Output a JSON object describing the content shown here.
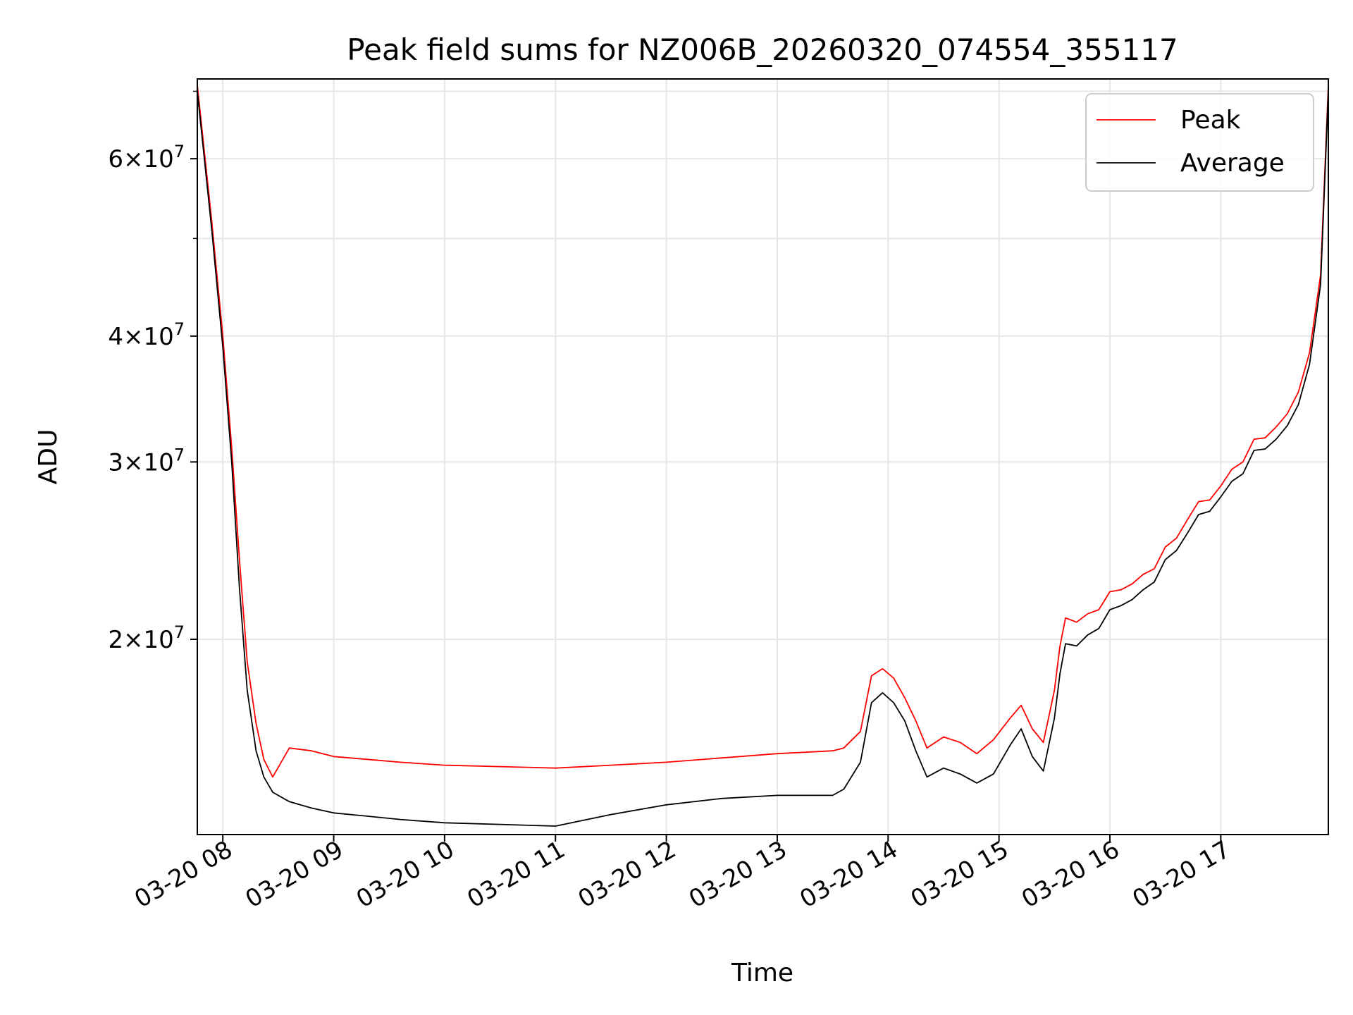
{
  "chart_data": {
    "type": "line",
    "title": "Peak field sums for NZ006B_20260320_074554_355117",
    "xlabel": "Time",
    "ylabel": "ADU",
    "yscale": "log",
    "ylim": [
      12800000,
      72000000
    ],
    "xlim": [
      7.77,
      17.97
    ],
    "grid": true,
    "legend_position": "top-right",
    "x_ticks": [
      {
        "value": 8,
        "label": "03-20 08"
      },
      {
        "value": 9,
        "label": "03-20 09"
      },
      {
        "value": 10,
        "label": "03-20 10"
      },
      {
        "value": 11,
        "label": "03-20 11"
      },
      {
        "value": 12,
        "label": "03-20 12"
      },
      {
        "value": 13,
        "label": "03-20 13"
      },
      {
        "value": 14,
        "label": "03-20 14"
      },
      {
        "value": 15,
        "label": "03-20 15"
      },
      {
        "value": 16,
        "label": "03-20 16"
      },
      {
        "value": 17,
        "label": "03-20 17"
      }
    ],
    "y_ticks": [
      {
        "value": 20000000,
        "mantissa": "2",
        "exponent": "7"
      },
      {
        "value": 30000000,
        "mantissa": "3",
        "exponent": "7"
      },
      {
        "value": 40000000,
        "mantissa": "4",
        "exponent": "7"
      },
      {
        "value": 60000000,
        "mantissa": "6",
        "exponent": "7"
      }
    ],
    "y_minor_ticks": [
      50000000,
      70000000
    ],
    "series": [
      {
        "name": "Peak",
        "color": "#ff0000",
        "x": [
          7.77,
          7.9,
          8.0,
          8.08,
          8.15,
          8.22,
          8.3,
          8.37,
          8.45,
          8.6,
          8.8,
          9.0,
          9.3,
          9.6,
          10.0,
          10.5,
          11.0,
          11.5,
          12.0,
          12.5,
          13.0,
          13.5,
          13.6,
          13.75,
          13.85,
          13.95,
          14.05,
          14.15,
          14.25,
          14.35,
          14.5,
          14.65,
          14.8,
          14.95,
          15.1,
          15.2,
          15.3,
          15.4,
          15.5,
          15.55,
          15.6,
          15.7,
          15.8,
          15.9,
          16.0,
          16.1,
          16.2,
          16.3,
          16.4,
          16.5,
          16.6,
          16.7,
          16.8,
          16.9,
          17.0,
          17.1,
          17.2,
          17.3,
          17.4,
          17.5,
          17.6,
          17.7,
          17.8,
          17.9,
          17.97
        ],
        "y": [
          71000000,
          52000000,
          40000000,
          31000000,
          24000000,
          19000000,
          16500000,
          15200000,
          14600000,
          15600000,
          15500000,
          15300000,
          15200000,
          15100000,
          15000000,
          14950000,
          14900000,
          15000000,
          15100000,
          15250000,
          15400000,
          15500000,
          15600000,
          16200000,
          18400000,
          18700000,
          18300000,
          17500000,
          16600000,
          15600000,
          16000000,
          15800000,
          15400000,
          15900000,
          16700000,
          17200000,
          16300000,
          15800000,
          17800000,
          19700000,
          21000000,
          20800000,
          21200000,
          21400000,
          22300000,
          22400000,
          22700000,
          23200000,
          23500000,
          24700000,
          25200000,
          26300000,
          27400000,
          27500000,
          28400000,
          29500000,
          30000000,
          31600000,
          31700000,
          32500000,
          33500000,
          35200000,
          38500000,
          46000000,
          71000000
        ]
      },
      {
        "name": "Average",
        "color": "#000000",
        "x": [
          7.77,
          7.9,
          8.0,
          8.08,
          8.15,
          8.22,
          8.3,
          8.37,
          8.45,
          8.6,
          8.8,
          9.0,
          9.3,
          9.6,
          10.0,
          10.5,
          11.0,
          11.5,
          12.0,
          12.5,
          13.0,
          13.5,
          13.6,
          13.75,
          13.85,
          13.95,
          14.05,
          14.15,
          14.25,
          14.35,
          14.5,
          14.65,
          14.8,
          14.95,
          15.1,
          15.2,
          15.3,
          15.4,
          15.5,
          15.55,
          15.6,
          15.7,
          15.8,
          15.9,
          16.0,
          16.1,
          16.2,
          16.3,
          16.4,
          16.5,
          16.6,
          16.7,
          16.8,
          16.9,
          17.0,
          17.1,
          17.2,
          17.3,
          17.4,
          17.5,
          17.6,
          17.7,
          17.8,
          17.9,
          17.97
        ],
        "y": [
          70000000,
          51000000,
          39000000,
          30000000,
          22500000,
          17800000,
          15500000,
          14600000,
          14100000,
          13800000,
          13600000,
          13450000,
          13350000,
          13250000,
          13150000,
          13100000,
          13050000,
          13400000,
          13700000,
          13900000,
          14000000,
          14000000,
          14200000,
          15100000,
          17300000,
          17700000,
          17300000,
          16600000,
          15500000,
          14600000,
          14900000,
          14700000,
          14400000,
          14700000,
          15700000,
          16300000,
          15300000,
          14800000,
          16700000,
          18500000,
          19800000,
          19700000,
          20200000,
          20500000,
          21400000,
          21600000,
          21900000,
          22400000,
          22800000,
          24000000,
          24500000,
          25500000,
          26600000,
          26800000,
          27700000,
          28700000,
          29200000,
          30800000,
          30900000,
          31600000,
          32600000,
          34200000,
          37500000,
          45000000,
          70000000
        ]
      }
    ]
  }
}
